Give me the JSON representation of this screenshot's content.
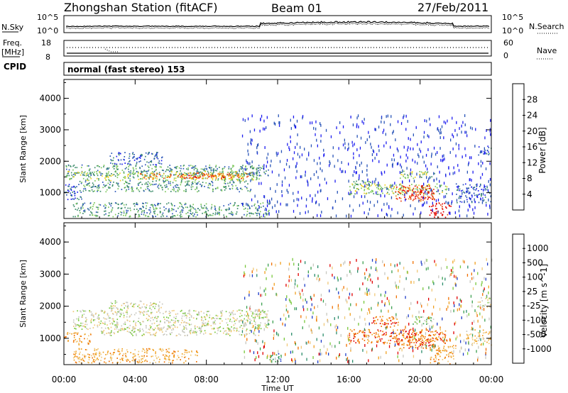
{
  "header": {
    "station_title": "Zhongshan Station (fitACF)",
    "beam": "Beam 01",
    "date": "27/Feb/2011"
  },
  "status_panels": {
    "nsky_label": "N.Sky",
    "nsearch_label": "N.Search",
    "noise_ticks": [
      "10^5",
      "10^0"
    ],
    "noise_ticks_right": [
      "10^5",
      "10^0"
    ],
    "freq_label": "Freq.",
    "freq_unit": "[MHz]",
    "freq_ticks": [
      "18",
      "8"
    ],
    "nave_label": "Nave",
    "nave_ticks": [
      "60",
      "0"
    ],
    "cpid_label": "CPID",
    "cpid_text": "normal (fast stereo) 153"
  },
  "chart_data": [
    {
      "type": "heatmap",
      "name": "power",
      "ylabel": "Slant Range [km]",
      "xlabel": "",
      "x_ticks": [
        "00:00",
        "04:00",
        "08:00",
        "12:00",
        "16:00",
        "20:00",
        "00:00"
      ],
      "y_ticks": [
        1000,
        2000,
        3000,
        4000
      ],
      "ylim": [
        180,
        4600
      ],
      "xlim_hours": [
        0,
        24
      ],
      "colorbar": {
        "label": "Power [dB]",
        "ticks": [
          4,
          8,
          12,
          16,
          20,
          24,
          28
        ],
        "colors": [
          "#1e1ef0",
          "#2a55b8",
          "#3c8c6a",
          "#7cc85a",
          "#f0d020",
          "#f08c10",
          "#e84010",
          "#e00000"
        ]
      },
      "regions": [
        {
          "t0": 0.1,
          "t1": 11.5,
          "r0": 1550,
          "r1": 1900,
          "level": 2
        },
        {
          "t0": 0.1,
          "t1": 11.0,
          "r0": 1400,
          "r1": 1700,
          "level": 3
        },
        {
          "t0": 4.0,
          "t1": 10.5,
          "r0": 1450,
          "r1": 1650,
          "level": 5
        },
        {
          "t0": 6.5,
          "t1": 9.8,
          "r0": 1480,
          "r1": 1620,
          "level": 6
        },
        {
          "t0": 0.8,
          "t1": 10.5,
          "r0": 1050,
          "r1": 1400,
          "level": 2
        },
        {
          "t0": 0.0,
          "t1": 1.0,
          "r0": 800,
          "r1": 1300,
          "level": 1
        },
        {
          "t0": 2.5,
          "t1": 5.5,
          "r0": 1900,
          "r1": 2300,
          "level": 1
        },
        {
          "t0": 0.5,
          "t1": 11.5,
          "r0": 250,
          "r1": 700,
          "level": 2
        },
        {
          "t0": 16.0,
          "t1": 21.5,
          "r0": 950,
          "r1": 1300,
          "level": 3
        },
        {
          "t0": 18.5,
          "t1": 20.8,
          "r0": 750,
          "r1": 1250,
          "level": 6
        },
        {
          "t0": 19.5,
          "t1": 20.8,
          "r0": 800,
          "r1": 1100,
          "level": 7
        },
        {
          "t0": 16.2,
          "t1": 17.2,
          "r0": 1200,
          "r1": 1450,
          "level": 3
        },
        {
          "t0": 18.8,
          "t1": 20.8,
          "r0": 1450,
          "r1": 1700,
          "level": 3
        },
        {
          "t0": 20.5,
          "t1": 21.7,
          "r0": 200,
          "r1": 700,
          "level": 7
        },
        {
          "t0": 22.0,
          "t1": 24.0,
          "r0": 700,
          "r1": 1300,
          "level": 1
        },
        {
          "t0": 23.2,
          "t1": 24.0,
          "r0": 2200,
          "r1": 2500,
          "level": 1
        }
      ]
    },
    {
      "type": "heatmap",
      "name": "velocity",
      "ylabel": "Slant Range [km]",
      "xlabel": "Time UT",
      "x_ticks": [
        "00:00",
        "04:00",
        "08:00",
        "12:00",
        "16:00",
        "20:00",
        "00:00"
      ],
      "y_ticks": [
        1000,
        2000,
        3000,
        4000
      ],
      "ylim": [
        180,
        4600
      ],
      "xlim_hours": [
        0,
        24
      ],
      "colorbar": {
        "label": "Velocity [m s^-1]",
        "ticks": [
          1000,
          500,
          100,
          25,
          -25,
          -100,
          -500,
          -1000
        ],
        "colors": [
          "#1e3cc8",
          "#2a8c6a",
          "#3ca050",
          "#78c83c",
          "#c8c8c0",
          "#f0c878",
          "#f0a020",
          "#f07000",
          "#e00000"
        ]
      },
      "regions": [
        {
          "t0": 0.5,
          "t1": 11.5,
          "r0": 1300,
          "r1": 1900,
          "level": 4
        },
        {
          "t0": 2.0,
          "t1": 11.0,
          "r0": 1100,
          "r1": 1350,
          "level": 4
        },
        {
          "t0": 2.5,
          "t1": 5.5,
          "r0": 1900,
          "r1": 2200,
          "level": 4
        },
        {
          "t0": 0.0,
          "t1": 1.5,
          "r0": 800,
          "r1": 1200,
          "level": 6
        },
        {
          "t0": 0.5,
          "t1": 7.5,
          "r0": 250,
          "r1": 700,
          "level": 6
        },
        {
          "t0": 11.5,
          "t1": 12.2,
          "r0": 250,
          "r1": 550,
          "level": 1
        },
        {
          "t0": 16.0,
          "t1": 21.5,
          "r0": 850,
          "r1": 1300,
          "level": 7
        },
        {
          "t0": 18.5,
          "t1": 20.8,
          "r0": 700,
          "r1": 1250,
          "level": 7
        },
        {
          "t0": 17.2,
          "t1": 18.8,
          "r0": 1350,
          "r1": 1700,
          "level": 7
        },
        {
          "t0": 19.5,
          "t1": 20.8,
          "r0": 1450,
          "r1": 1700,
          "level": 3
        },
        {
          "t0": 20.5,
          "t1": 22.0,
          "r0": 200,
          "r1": 800,
          "level": 6
        },
        {
          "t0": 22.5,
          "t1": 24.0,
          "r0": 800,
          "r1": 1300,
          "level": 5
        },
        {
          "t0": 23.2,
          "t1": 24.0,
          "r0": 1900,
          "r1": 2300,
          "level": 4
        }
      ]
    }
  ]
}
